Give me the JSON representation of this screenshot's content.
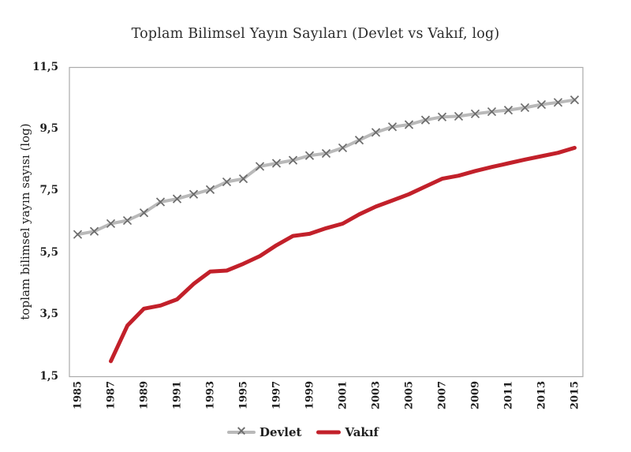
{
  "chart_data": {
    "type": "line",
    "title": "Toplam Bilimsel Yayın Sayıları (Devlet vs Vakıf, log)",
    "ylabel": "toplam bilimsel yayın sayısı (log)",
    "xlabel": "",
    "ylim": [
      1.5,
      11.5
    ],
    "yticks": [
      1.5,
      3.5,
      5.5,
      7.5,
      9.5,
      11.5
    ],
    "ytick_labels": [
      "1,5",
      "3,5",
      "5,5",
      "7,5",
      "9,5",
      "11,5"
    ],
    "x": [
      1985,
      1986,
      1987,
      1988,
      1989,
      1990,
      1991,
      1992,
      1993,
      1994,
      1995,
      1996,
      1997,
      1998,
      1999,
      2000,
      2001,
      2002,
      2003,
      2004,
      2005,
      2006,
      2007,
      2008,
      2009,
      2010,
      2011,
      2012,
      2013,
      2014,
      2015
    ],
    "xtick_labels": [
      "1985",
      "1987",
      "1989",
      "1991",
      "1993",
      "1995",
      "1997",
      "1999",
      "2001",
      "2003",
      "2005",
      "2007",
      "2009",
      "2011",
      "2013",
      "2015"
    ],
    "xtick_step": 2,
    "grid": false,
    "legend_position": "bottom",
    "series": [
      {
        "name": "Devlet",
        "color": "#b9b9b9",
        "marker": "x",
        "marker_color": "#6b6b6b",
        "values": [
          6.1,
          6.2,
          6.45,
          6.55,
          6.8,
          7.15,
          7.25,
          7.4,
          7.55,
          7.8,
          7.9,
          8.3,
          8.4,
          8.5,
          8.65,
          8.72,
          8.9,
          9.15,
          9.4,
          9.58,
          9.65,
          9.8,
          9.9,
          9.92,
          10.0,
          10.07,
          10.12,
          10.2,
          10.3,
          10.37,
          10.45
        ]
      },
      {
        "name": "Vakıf",
        "color": "#c2202a",
        "marker": null,
        "marker_color": null,
        "values": [
          null,
          null,
          2.0,
          3.15,
          3.7,
          3.8,
          4.0,
          4.5,
          4.9,
          4.93,
          5.15,
          5.4,
          5.75,
          6.05,
          6.12,
          6.3,
          6.45,
          6.75,
          7.0,
          7.2,
          7.4,
          7.65,
          7.9,
          8.0,
          8.15,
          8.28,
          8.4,
          8.52,
          8.63,
          8.74,
          8.9
        ]
      }
    ],
    "colors": {
      "plot_border": "#ababab",
      "text": "#1f1f1f",
      "title_text": "#2b2b2b",
      "background": "#ffffff"
    }
  }
}
